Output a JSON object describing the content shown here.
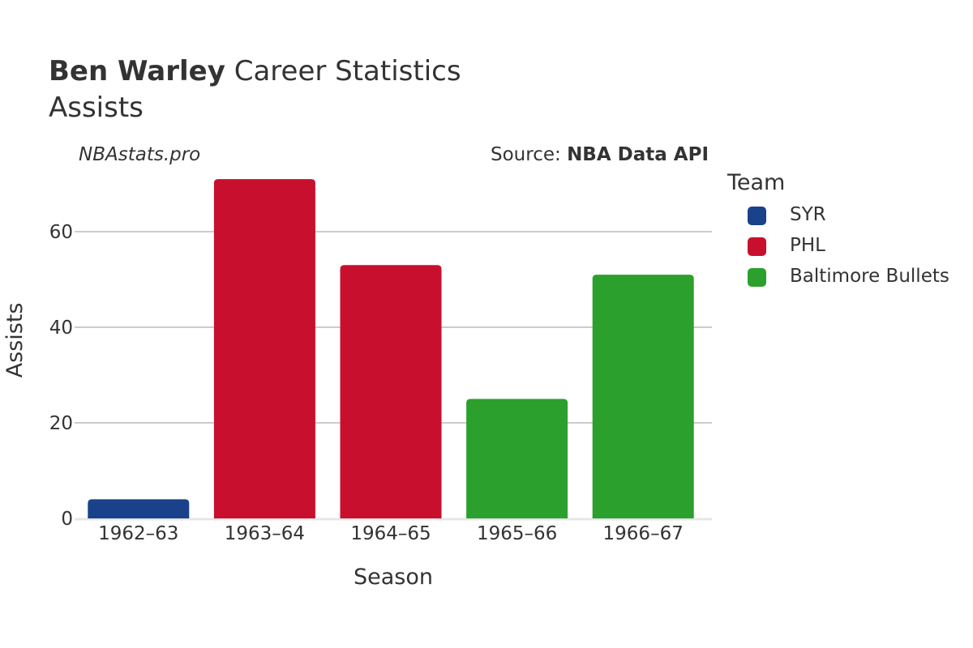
{
  "header": {
    "title_bold": "Ben Warley",
    "title_rest": " Career Statistics",
    "subtitle": "Assists",
    "watermark": "NBAstats.pro",
    "source_prefix": "Source: ",
    "source_name": "NBA Data API"
  },
  "legend": {
    "title": "Team",
    "items": [
      {
        "label": "SYR",
        "color": "#1a428a"
      },
      {
        "label": "PHL",
        "color": "#c8102e"
      },
      {
        "label": "Baltimore Bullets",
        "color": "#2ca02c"
      }
    ]
  },
  "chart_data": {
    "type": "bar",
    "xlabel": "Season",
    "ylabel": "Assists",
    "ylim": [
      0,
      70.5
    ],
    "yticks": [
      0,
      20,
      40,
      60
    ],
    "grid": true,
    "legend_position": "right",
    "categories": [
      "1962–63",
      "1963–64",
      "1964–65",
      "1965–66",
      "1966–67"
    ],
    "values": [
      4,
      71,
      53,
      25,
      51
    ],
    "teams": [
      "SYR",
      "PHL",
      "PHL",
      "Baltimore Bullets",
      "Baltimore Bullets"
    ],
    "colors": [
      "#1a428a",
      "#c8102e",
      "#c8102e",
      "#2ca02c",
      "#2ca02c"
    ]
  }
}
